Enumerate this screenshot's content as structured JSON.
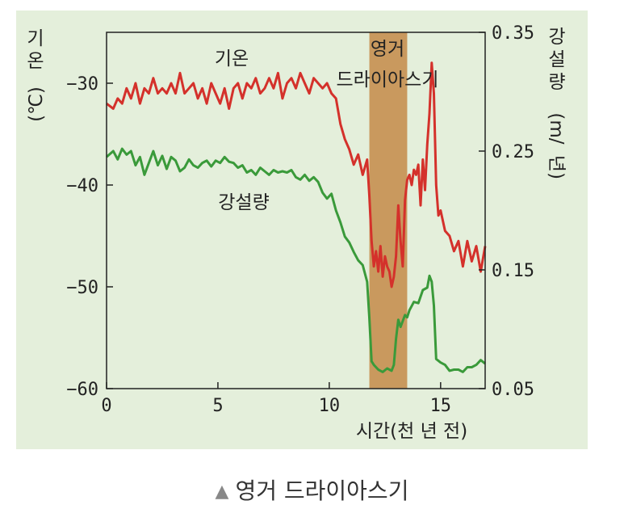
{
  "chart_data": {
    "type": "line",
    "xlabel": "시간(천 년 전)",
    "ylabel_left": [
      "기",
      "온",
      "(℃)"
    ],
    "ylabel_right": [
      "강",
      "설",
      "량",
      "(m/",
      "년)"
    ],
    "xlim": [
      0,
      17
    ],
    "ylim_left": [
      -60,
      -25
    ],
    "ylim_right": [
      0.05,
      0.35
    ],
    "x_ticks": [
      "0",
      "5",
      "10",
      "15"
    ],
    "x_tick_values": [
      0,
      5,
      10,
      15
    ],
    "y_ticks_left": [
      "−30",
      "−40",
      "−50",
      "−60"
    ],
    "y_tick_values_left": [
      -30,
      -40,
      -50,
      -60
    ],
    "y_ticks_right": [
      "0.35",
      "0.25",
      "0.15",
      "0.05"
    ],
    "y_tick_values_right": [
      0.35,
      0.25,
      0.15,
      0.05
    ],
    "shaded_band": {
      "label": [
        "영거",
        "드라이아스기"
      ],
      "x_start": 11.8,
      "x_end": 13.5,
      "color": "#c9995e"
    },
    "series": [
      {
        "name": "기온",
        "axis": "left",
        "color": "#d4312b",
        "x": [
          0,
          0.3,
          0.5,
          0.7,
          0.9,
          1.1,
          1.3,
          1.5,
          1.7,
          1.9,
          2.1,
          2.3,
          2.5,
          2.7,
          2.9,
          3.1,
          3.3,
          3.5,
          3.7,
          3.9,
          4.1,
          4.3,
          4.5,
          4.7,
          4.9,
          5.1,
          5.3,
          5.5,
          5.7,
          5.9,
          6.1,
          6.3,
          6.5,
          6.7,
          6.9,
          7.1,
          7.3,
          7.5,
          7.7,
          7.9,
          8.1,
          8.3,
          8.5,
          8.7,
          8.9,
          9.1,
          9.3,
          9.5,
          9.7,
          9.9,
          10.1,
          10.3,
          10.5,
          10.7,
          10.9,
          11.1,
          11.3,
          11.5,
          11.7,
          11.8,
          11.9,
          12.0,
          12.1,
          12.2,
          12.3,
          12.4,
          12.5,
          12.6,
          12.7,
          12.8,
          12.9,
          13.0,
          13.1,
          13.2,
          13.3,
          13.4,
          13.5,
          13.6,
          13.7,
          13.8,
          13.9,
          14.0,
          14.1,
          14.2,
          14.3,
          14.4,
          14.5,
          14.6,
          14.7,
          14.8,
          14.9,
          15.0,
          15.2,
          15.4,
          15.6,
          15.8,
          16.0,
          16.2,
          16.4,
          16.6,
          16.8,
          17.0
        ],
        "y": [
          -32.0,
          -32.5,
          -31.5,
          -32.0,
          -30.5,
          -31.5,
          -30.0,
          -32.0,
          -30.5,
          -31.0,
          -29.5,
          -31.0,
          -30.5,
          -31.0,
          -30.0,
          -31.0,
          -29.0,
          -31.0,
          -30.5,
          -30.0,
          -31.5,
          -30.5,
          -32.0,
          -30.0,
          -31.0,
          -32.0,
          -30.5,
          -32.5,
          -30.5,
          -30.0,
          -31.5,
          -30.0,
          -30.5,
          -29.5,
          -31.0,
          -30.5,
          -29.5,
          -30.5,
          -29.0,
          -31.5,
          -30.0,
          -29.5,
          -30.5,
          -29.0,
          -30.0,
          -31.0,
          -29.5,
          -30.0,
          -30.5,
          -30.0,
          -31.0,
          -31.5,
          -34.0,
          -35.5,
          -36.5,
          -38.0,
          -37.0,
          -39.0,
          -37.5,
          -41.0,
          -45.5,
          -48.0,
          -46.5,
          -48.5,
          -46.0,
          -49.0,
          -47.0,
          -48.0,
          -48.5,
          -50.0,
          -49.0,
          -47.0,
          -42.0,
          -45.5,
          -48.0,
          -41.5,
          -39.5,
          -39.0,
          -40.0,
          -38.5,
          -39.0,
          -38.0,
          -42.0,
          -37.5,
          -40.5,
          -36.0,
          -33.0,
          -28.0,
          -31.0,
          -40.0,
          -43.0,
          -42.5,
          -44.5,
          -45.0,
          -46.5,
          -45.5,
          -48.0,
          -45.5,
          -47.5,
          -46.0,
          -48.5,
          -46.0
        ]
      },
      {
        "name": "강설량",
        "axis": "right",
        "color": "#3a9a3a",
        "x": [
          0,
          0.3,
          0.5,
          0.7,
          0.9,
          1.1,
          1.3,
          1.5,
          1.7,
          1.9,
          2.1,
          2.3,
          2.5,
          2.7,
          2.9,
          3.1,
          3.3,
          3.5,
          3.7,
          3.9,
          4.1,
          4.3,
          4.5,
          4.7,
          4.9,
          5.1,
          5.3,
          5.5,
          5.7,
          5.9,
          6.1,
          6.3,
          6.5,
          6.7,
          6.9,
          7.1,
          7.3,
          7.5,
          7.7,
          7.9,
          8.1,
          8.3,
          8.5,
          8.7,
          8.9,
          9.1,
          9.3,
          9.5,
          9.7,
          9.9,
          10.1,
          10.3,
          10.5,
          10.7,
          10.9,
          11.1,
          11.3,
          11.5,
          11.7,
          11.8,
          11.9,
          12.0,
          12.2,
          12.4,
          12.6,
          12.8,
          12.9,
          13.0,
          13.1,
          13.2,
          13.4,
          13.5,
          13.6,
          13.8,
          14.0,
          14.2,
          14.4,
          14.5,
          14.6,
          14.7,
          14.8,
          15.0,
          15.2,
          15.4,
          15.6,
          15.8,
          16.0,
          16.2,
          16.4,
          16.6,
          16.8,
          17.0
        ],
        "y": [
          0.245,
          0.25,
          0.243,
          0.252,
          0.247,
          0.25,
          0.238,
          0.245,
          0.23,
          0.24,
          0.25,
          0.238,
          0.246,
          0.235,
          0.245,
          0.242,
          0.233,
          0.236,
          0.243,
          0.238,
          0.236,
          0.24,
          0.242,
          0.237,
          0.242,
          0.24,
          0.245,
          0.241,
          0.24,
          0.236,
          0.238,
          0.232,
          0.234,
          0.23,
          0.236,
          0.233,
          0.23,
          0.234,
          0.232,
          0.233,
          0.232,
          0.234,
          0.228,
          0.226,
          0.23,
          0.225,
          0.228,
          0.224,
          0.215,
          0.21,
          0.214,
          0.2,
          0.19,
          0.178,
          0.173,
          0.165,
          0.158,
          0.154,
          0.14,
          0.11,
          0.073,
          0.07,
          0.066,
          0.064,
          0.067,
          0.065,
          0.07,
          0.092,
          0.108,
          0.102,
          0.112,
          0.11,
          0.116,
          0.123,
          0.122,
          0.133,
          0.135,
          0.145,
          0.14,
          0.12,
          0.075,
          0.072,
          0.07,
          0.065,
          0.066,
          0.066,
          0.064,
          0.068,
          0.068,
          0.07,
          0.074,
          0.071
        ]
      }
    ],
    "annotations": {
      "temp_label": "기온",
      "snow_label": "강설량"
    }
  },
  "caption": {
    "marker": "▲",
    "text": "영거 드라이아스기"
  }
}
